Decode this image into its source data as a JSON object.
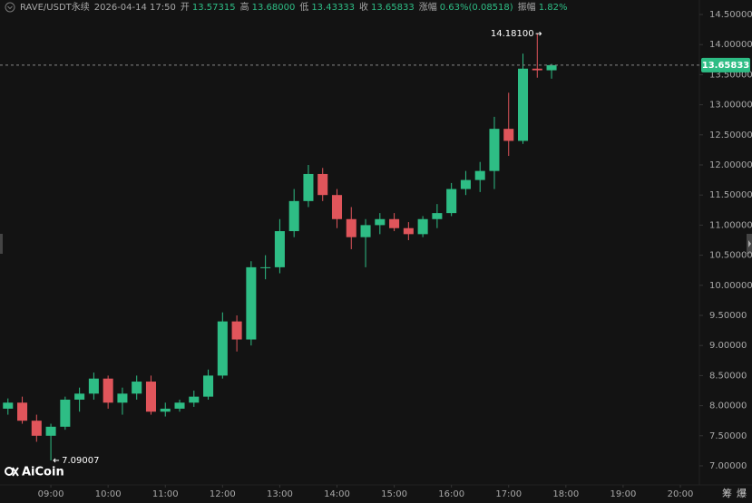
{
  "chart_data": {
    "type": "candlestick",
    "symbol": "RAVE/USDT永续",
    "datetime": "2026-04-14 17:50",
    "info": [
      {
        "label": "开",
        "value": "13.57315"
      },
      {
        "label": "高",
        "value": "13.68000"
      },
      {
        "label": "低",
        "value": "13.43333"
      },
      {
        "label": "收",
        "value": "13.65833"
      },
      {
        "label": "涨幅",
        "value": "0.63%(0.08518)"
      },
      {
        "label": "振幅",
        "value": "1.82%"
      }
    ],
    "x": [
      8.25,
      8.5,
      8.75,
      9,
      9.25,
      9.5,
      9.75,
      10,
      10.25,
      10.5,
      10.75,
      11,
      11.25,
      11.5,
      11.75,
      12,
      12.25,
      12.5,
      12.75,
      13,
      13.25,
      13.5,
      13.75,
      14,
      14.25,
      14.5,
      14.75,
      15,
      15.25,
      15.5,
      15.75,
      16,
      16.25,
      16.5,
      16.75,
      17,
      17.25,
      17.5,
      17.75
    ],
    "open": [
      7.95,
      8.05,
      7.75,
      7.5,
      7.65,
      8.1,
      8.2,
      8.45,
      8.05,
      8.2,
      8.4,
      7.9,
      7.95,
      8.05,
      8.15,
      8.5,
      9.4,
      9.1,
      10.3,
      10.3,
      10.9,
      11.4,
      11.85,
      11.5,
      11.1,
      10.8,
      11.0,
      11.1,
      10.95,
      10.85,
      11.1,
      11.2,
      11.6,
      11.75,
      11.9,
      12.6,
      12.4,
      13.6,
      13.57315
    ],
    "high": [
      8.12,
      8.15,
      7.85,
      7.7,
      8.15,
      8.3,
      8.55,
      8.5,
      8.3,
      8.5,
      8.5,
      8.05,
      8.1,
      8.25,
      8.6,
      9.55,
      9.5,
      10.4,
      10.5,
      11.1,
      11.6,
      12.0,
      11.95,
      11.6,
      11.3,
      11.1,
      11.2,
      11.2,
      11.05,
      11.15,
      11.35,
      11.7,
      11.9,
      12.05,
      12.8,
      13.2,
      13.85,
      14.181,
      13.68
    ],
    "low": [
      7.85,
      7.7,
      7.4,
      7.09007,
      7.6,
      7.9,
      8.1,
      7.95,
      7.85,
      8.1,
      7.85,
      7.82,
      7.9,
      7.98,
      8.1,
      8.45,
      8.9,
      9.0,
      10.1,
      10.2,
      10.8,
      11.3,
      11.4,
      10.95,
      10.6,
      10.3,
      10.85,
      10.9,
      10.75,
      10.8,
      10.95,
      11.15,
      11.5,
      11.55,
      11.6,
      12.15,
      12.35,
      13.45,
      13.43333
    ],
    "close": [
      8.05,
      7.75,
      7.5,
      7.65,
      8.1,
      8.2,
      8.45,
      8.05,
      8.2,
      8.4,
      7.9,
      7.95,
      8.05,
      8.15,
      8.5,
      9.4,
      9.1,
      10.3,
      10.3,
      10.9,
      11.4,
      11.85,
      11.5,
      11.1,
      10.8,
      11.0,
      11.1,
      10.95,
      10.85,
      11.1,
      11.2,
      11.6,
      11.75,
      11.9,
      12.6,
      12.4,
      13.6,
      13.57315,
      13.65833
    ],
    "up_color": "#2ebd85",
    "down_color": "#e0555b",
    "xlim": [
      8.111,
      20.333
    ],
    "ylim": [
      7.0,
      14.5
    ],
    "xticks": [
      {
        "value": 9,
        "label": "09:00"
      },
      {
        "value": 10,
        "label": "10:00"
      },
      {
        "value": 11,
        "label": "11:00"
      },
      {
        "value": 12,
        "label": "12:00"
      },
      {
        "value": 13,
        "label": "13:00"
      },
      {
        "value": 14,
        "label": "14:00"
      },
      {
        "value": 15,
        "label": "15:00"
      },
      {
        "value": 16,
        "label": "16:00"
      },
      {
        "value": 17,
        "label": "17:00"
      },
      {
        "value": 18,
        "label": "18:00"
      },
      {
        "value": 19,
        "label": "19:00"
      },
      {
        "value": 20,
        "label": "20:00"
      }
    ],
    "yticks": [
      {
        "value": 7,
        "label": "7.00000"
      },
      {
        "value": 7.5,
        "label": "7.50000"
      },
      {
        "value": 8,
        "label": "8.00000"
      },
      {
        "value": 8.5,
        "label": "8.50000"
      },
      {
        "value": 9,
        "label": "9.00000"
      },
      {
        "value": 9.5,
        "label": "9.50000"
      },
      {
        "value": 10,
        "label": "10.00000"
      },
      {
        "value": 10.5,
        "label": "10.50000"
      },
      {
        "value": 11,
        "label": "11.00000"
      },
      {
        "value": 11.5,
        "label": "11.50000"
      },
      {
        "value": 12,
        "label": "12.00000"
      },
      {
        "value": 12.5,
        "label": "12.50000"
      },
      {
        "value": 13,
        "label": "13.00000"
      },
      {
        "value": 13.5,
        "label": "13.50000"
      },
      {
        "value": 14,
        "label": "14.00000"
      },
      {
        "value": 14.5,
        "label": "14.50000"
      }
    ],
    "grid": false,
    "max_marker": {
      "x": 17.6,
      "value": 14.181,
      "label": "14.18100"
    },
    "min_marker": {
      "x": 9.0,
      "value": 7.09007,
      "label": "7.09007"
    },
    "last_price": {
      "value": 13.65833,
      "label": "13.65833"
    },
    "watermark": "AiCoin",
    "corner_buttons": [
      "筹",
      "爆"
    ]
  }
}
